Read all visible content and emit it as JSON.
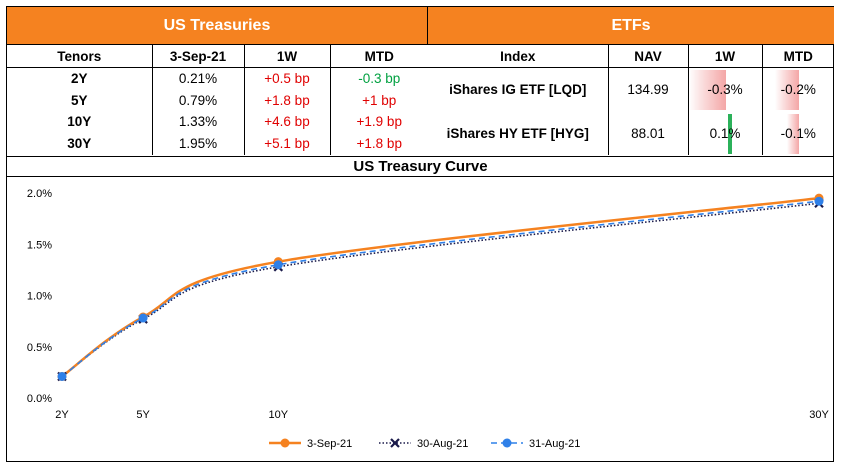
{
  "treasuries": {
    "title": "US Treasuries",
    "headers": [
      "Tenors",
      "3-Sep-21",
      "1W",
      "MTD"
    ],
    "rows": [
      {
        "tenor": "2Y",
        "yield": "0.21%",
        "w1": "+0.5 bp",
        "mtd": "-0.3 bp",
        "w1_color": "red",
        "mtd_color": "green"
      },
      {
        "tenor": "5Y",
        "yield": "0.79%",
        "w1": "+1.8 bp",
        "mtd": "+1 bp",
        "w1_color": "red",
        "mtd_color": "red"
      },
      {
        "tenor": "10Y",
        "yield": "1.33%",
        "w1": "+4.6 bp",
        "mtd": "+1.9 bp",
        "w1_color": "red",
        "mtd_color": "red"
      },
      {
        "tenor": "30Y",
        "yield": "1.95%",
        "w1": "+5.1 bp",
        "mtd": "+1.8 bp",
        "w1_color": "red",
        "mtd_color": "red"
      }
    ]
  },
  "etfs": {
    "title": "ETFs",
    "headers": [
      "Index",
      "NAV",
      "1W",
      "MTD"
    ],
    "rows": [
      {
        "index": "iShares IG ETF [LQD]",
        "nav": "134.99",
        "w1": "-0.3%",
        "mtd": "-0.2%",
        "w1_value": -0.3,
        "mtd_value": -0.2
      },
      {
        "index": "iShares HY ETF [HYG]",
        "nav": "88.01",
        "w1": "0.1%",
        "mtd": "-0.1%",
        "w1_value": 0.1,
        "mtd_value": -0.1
      }
    ],
    "bar_scale_max": 0.3,
    "colors": {
      "negative": "#f4a6a6",
      "positive": "#2bb15a"
    }
  },
  "chart_data": {
    "type": "line",
    "title": "US Treasury Curve",
    "x": [
      2,
      5,
      10,
      30
    ],
    "tick_labels": [
      "2Y",
      "5Y",
      "10Y",
      "30Y"
    ],
    "ylim": [
      0,
      2.0
    ],
    "yticks": [
      0,
      0.5,
      1.0,
      1.5,
      2.0
    ],
    "ytick_labels": [
      "0.0%",
      "0.5%",
      "1.0%",
      "1.5%",
      "2.0%"
    ],
    "grid": false,
    "legend_position": "bottom",
    "series": [
      {
        "name": "3-Sep-21",
        "values": [
          0.21,
          0.79,
          1.33,
          1.95
        ],
        "color": "#f58220",
        "style": "solid"
      },
      {
        "name": "30-Aug-21",
        "values": [
          0.21,
          0.77,
          1.28,
          1.9
        ],
        "color": "#1a1a4a",
        "style": "dotted"
      },
      {
        "name": "31-Aug-21",
        "values": [
          0.21,
          0.78,
          1.3,
          1.92
        ],
        "color": "#2f80e8",
        "style": "dashed"
      }
    ]
  }
}
